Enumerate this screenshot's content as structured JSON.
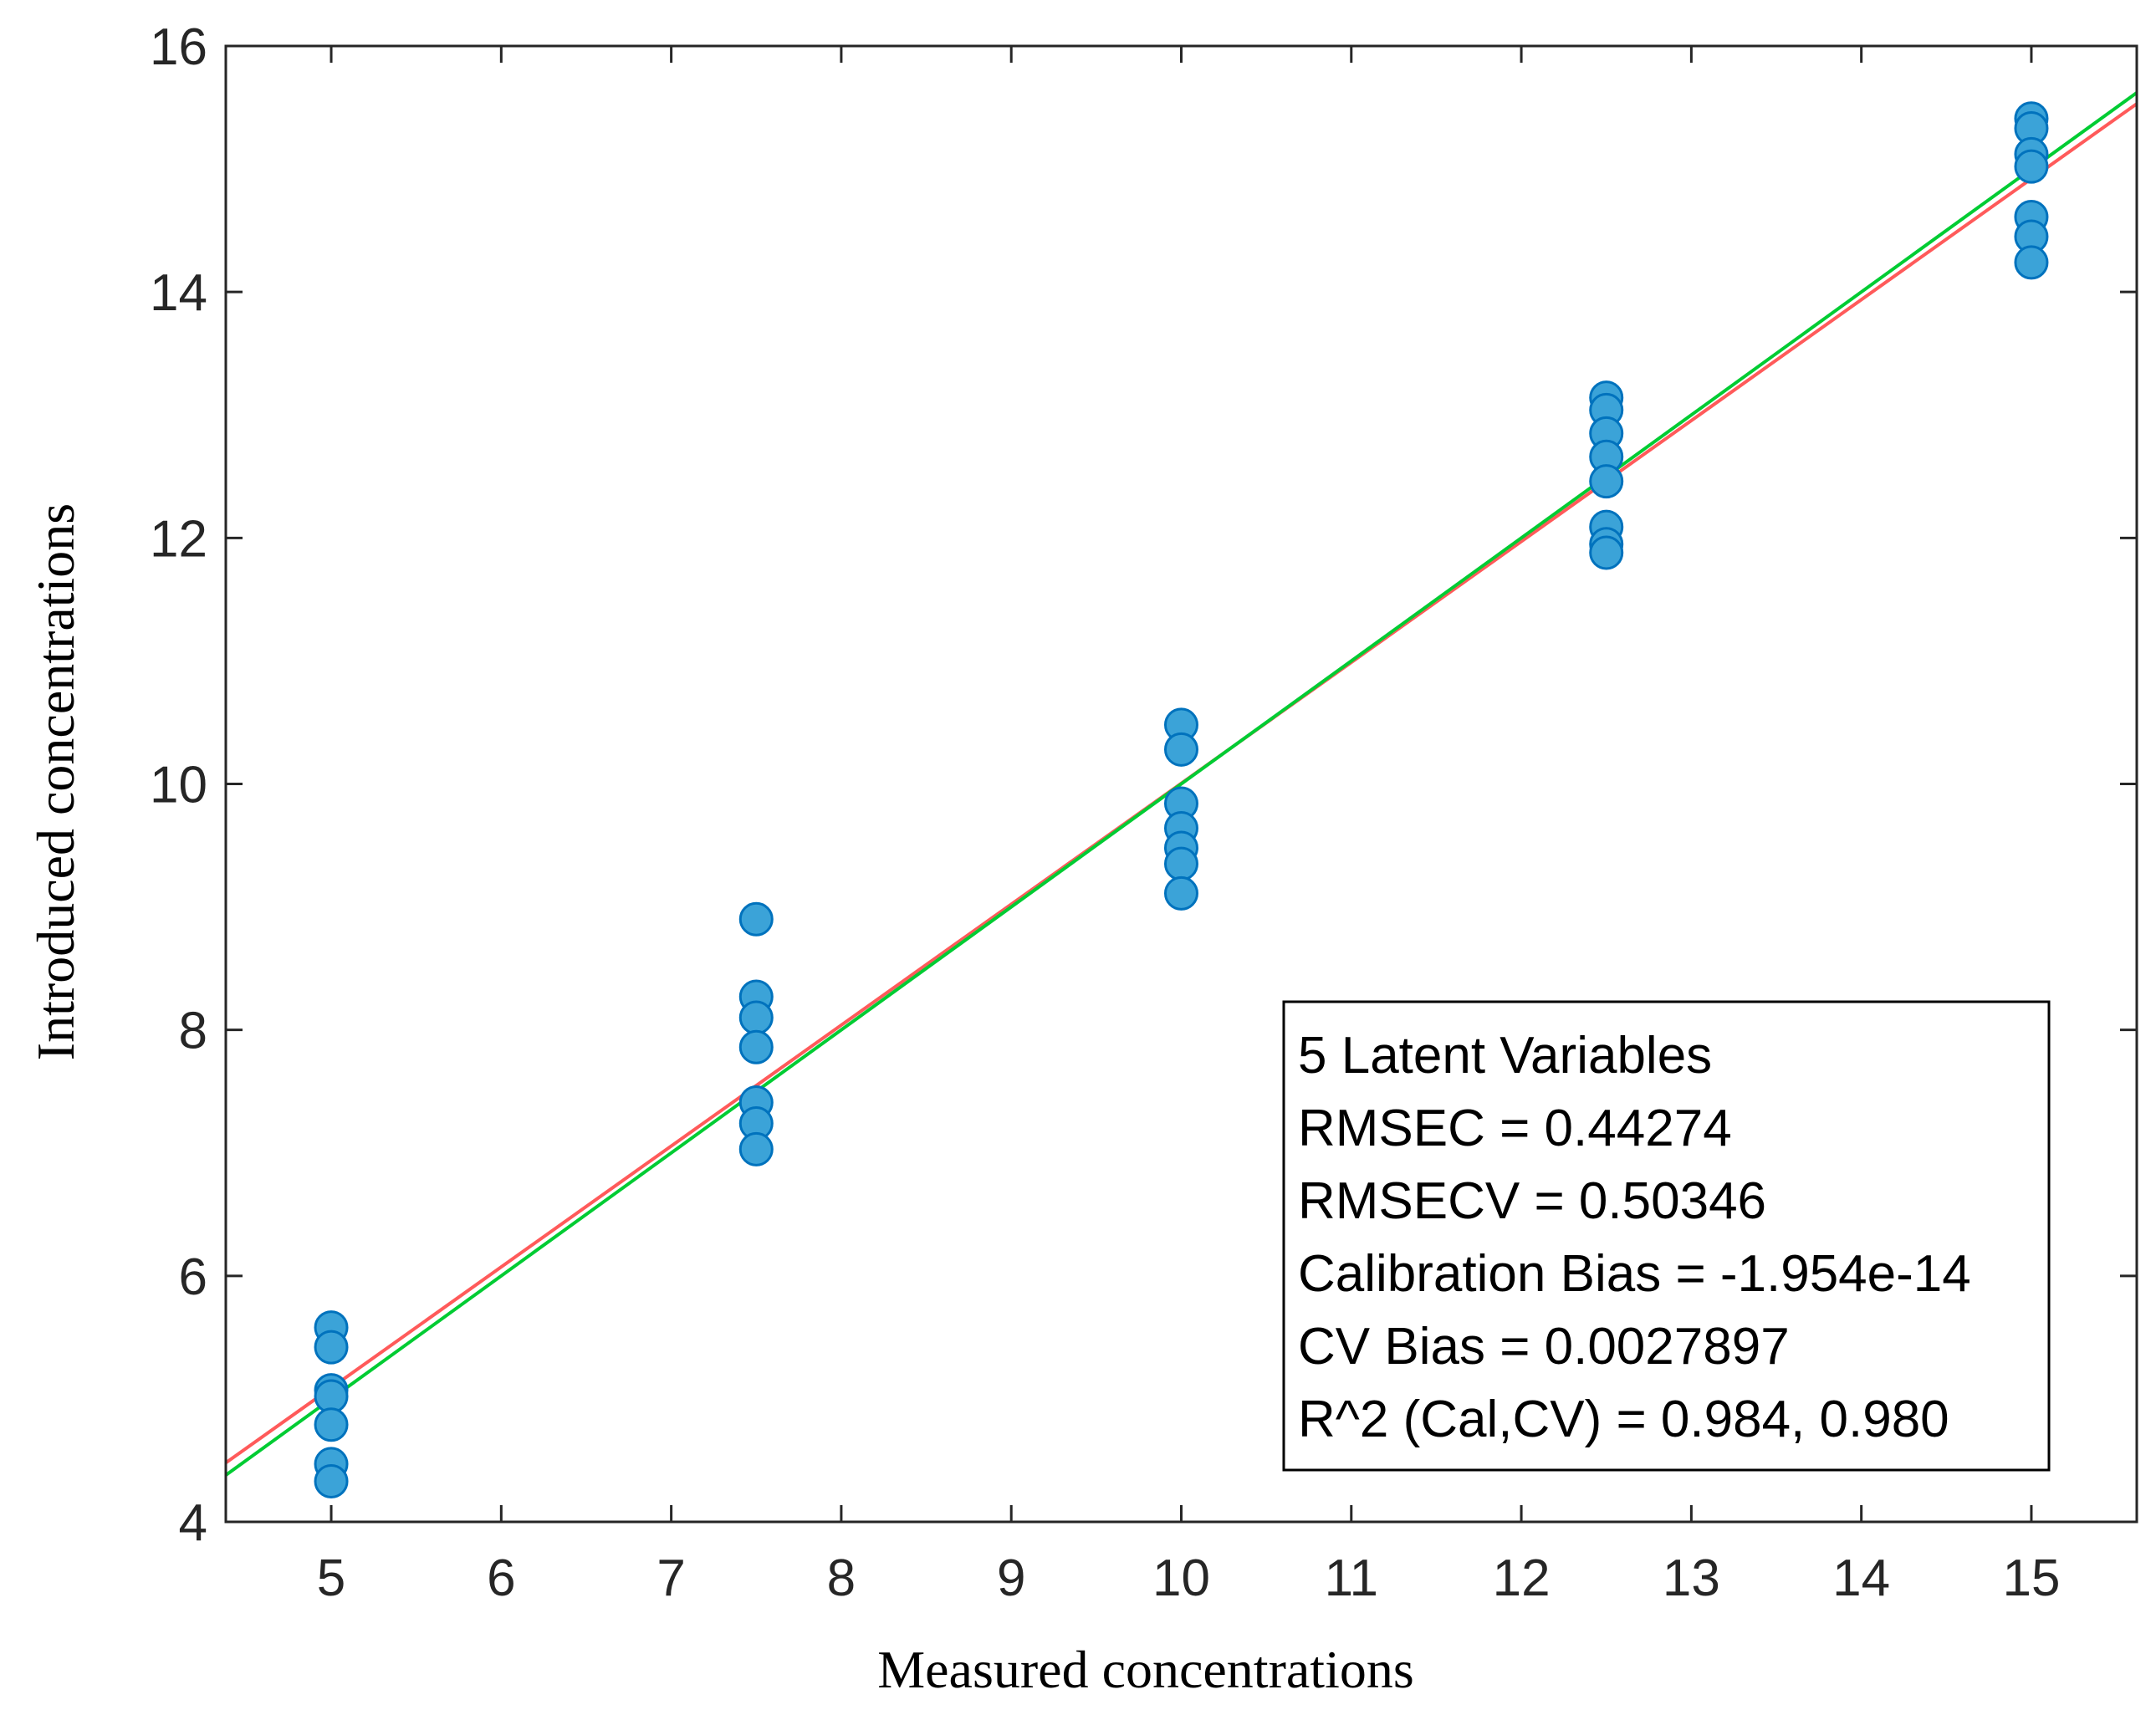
{
  "chart_data": {
    "type": "scatter",
    "xlabel": "Measured concentrations",
    "ylabel": "Introduced concentrations",
    "xlim": [
      4.38,
      15.62
    ],
    "ylim": [
      4,
      16
    ],
    "xticks": [
      5,
      6,
      7,
      8,
      9,
      10,
      11,
      12,
      13,
      14,
      15
    ],
    "yticks": [
      4,
      6,
      8,
      10,
      12,
      14,
      16
    ],
    "grid": false,
    "series": [
      {
        "name": "samples",
        "color": "#3ba3d8",
        "edge_color": "#0072bd",
        "marker": "circle",
        "points": [
          {
            "x": 5,
            "y": 5.58
          },
          {
            "x": 5,
            "y": 5.42
          },
          {
            "x": 5,
            "y": 5.07
          },
          {
            "x": 5,
            "y": 5.02
          },
          {
            "x": 5,
            "y": 4.79
          },
          {
            "x": 5,
            "y": 4.47
          },
          {
            "x": 5,
            "y": 4.33
          },
          {
            "x": 7.5,
            "y": 8.9
          },
          {
            "x": 7.5,
            "y": 8.27
          },
          {
            "x": 7.5,
            "y": 8.1
          },
          {
            "x": 7.5,
            "y": 7.86
          },
          {
            "x": 7.5,
            "y": 7.41
          },
          {
            "x": 7.5,
            "y": 7.24
          },
          {
            "x": 7.5,
            "y": 7.03
          },
          {
            "x": 10,
            "y": 10.48
          },
          {
            "x": 10,
            "y": 10.28
          },
          {
            "x": 10,
            "y": 9.84
          },
          {
            "x": 10,
            "y": 9.64
          },
          {
            "x": 10,
            "y": 9.48
          },
          {
            "x": 10,
            "y": 9.35
          },
          {
            "x": 10,
            "y": 9.11
          },
          {
            "x": 12.5,
            "y": 13.14
          },
          {
            "x": 12.5,
            "y": 13.04
          },
          {
            "x": 12.5,
            "y": 12.85
          },
          {
            "x": 12.5,
            "y": 12.66
          },
          {
            "x": 12.5,
            "y": 12.46
          },
          {
            "x": 12.5,
            "y": 12.09
          },
          {
            "x": 12.5,
            "y": 11.95
          },
          {
            "x": 12.5,
            "y": 11.88
          },
          {
            "x": 15,
            "y": 15.41
          },
          {
            "x": 15,
            "y": 15.33
          },
          {
            "x": 15,
            "y": 15.12
          },
          {
            "x": 15,
            "y": 15.02
          },
          {
            "x": 15,
            "y": 14.61
          },
          {
            "x": 15,
            "y": 14.45
          },
          {
            "x": 15,
            "y": 14.24
          }
        ]
      }
    ],
    "lines": [
      {
        "name": "fit-line",
        "color": "#ff5a5a",
        "x": [
          4.38,
          15.62
        ],
        "y": [
          4.48,
          15.53
        ]
      },
      {
        "name": "one-to-one-line",
        "color": "#00cc33",
        "x": [
          4.38,
          15.62
        ],
        "y": [
          4.38,
          15.62
        ]
      }
    ],
    "legend_position": "bottom-right",
    "annotation": [
      "5 Latent Variables",
      "RMSEC = 0.44274",
      "RMSECV = 0.50346",
      "Calibration Bias = -1.954e-14",
      "CV Bias = 0.0027897",
      "R^2 (Cal,CV) = 0.984, 0.980"
    ]
  }
}
